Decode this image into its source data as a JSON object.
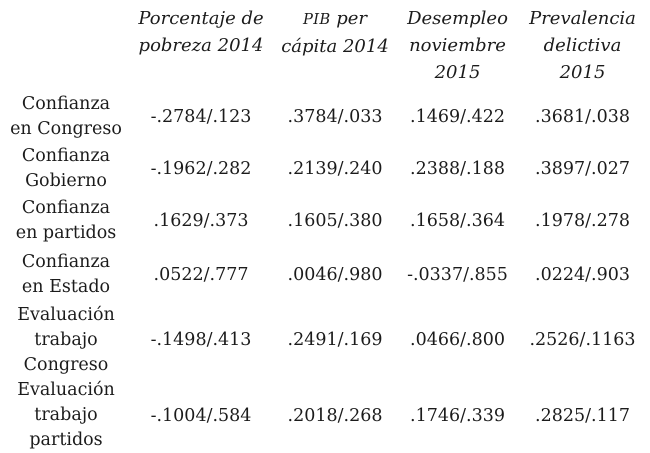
{
  "page": {
    "background_color": "#ffffff",
    "text_color": "#1b1b1b"
  },
  "table": {
    "headers": [
      {
        "lines": [
          "Porcentaje de",
          "pobreza 2014"
        ]
      },
      {
        "acronym": "PIB",
        "line1_rest": " per",
        "line2": "cápita 2014"
      },
      {
        "lines": [
          "Desempleo",
          "noviembre",
          "2015"
        ]
      },
      {
        "lines": [
          "Prevalencia",
          "delictiva",
          "2015"
        ]
      }
    ],
    "rows": [
      {
        "label_lines": [
          "Confianza",
          "en Congreso"
        ],
        "values": [
          "-.2784/.123",
          ".3784/.033",
          ".1469/.422",
          ".3681/.038"
        ]
      },
      {
        "label_lines": [
          "Confianza",
          "Gobierno"
        ],
        "values": [
          "-.1962/.282",
          ".2139/.240",
          ".2388/.188",
          ".3897/.027"
        ]
      },
      {
        "label_lines": [
          "Confianza",
          "en partidos"
        ],
        "values": [
          ".1629/.373",
          ".1605/.380",
          ".1658/.364",
          ".1978/.278"
        ]
      },
      {
        "label_lines": [
          "Confianza",
          "en Estado"
        ],
        "values": [
          ".0522/.777",
          ".0046/.980",
          "-.0337/.855",
          ".0224/.903"
        ]
      },
      {
        "label_lines": [
          "Evaluación",
          "trabajo",
          "Congreso"
        ],
        "values": [
          "-.1498/.413",
          ".2491/.169",
          ".0466/.800",
          ".2526/.1163"
        ]
      },
      {
        "label_lines": [
          "Evaluación",
          "trabajo",
          "partidos"
        ],
        "values": [
          "-.1004/.584",
          ".2018/.268",
          ".1746/.339",
          ".2825/.117"
        ]
      }
    ]
  }
}
